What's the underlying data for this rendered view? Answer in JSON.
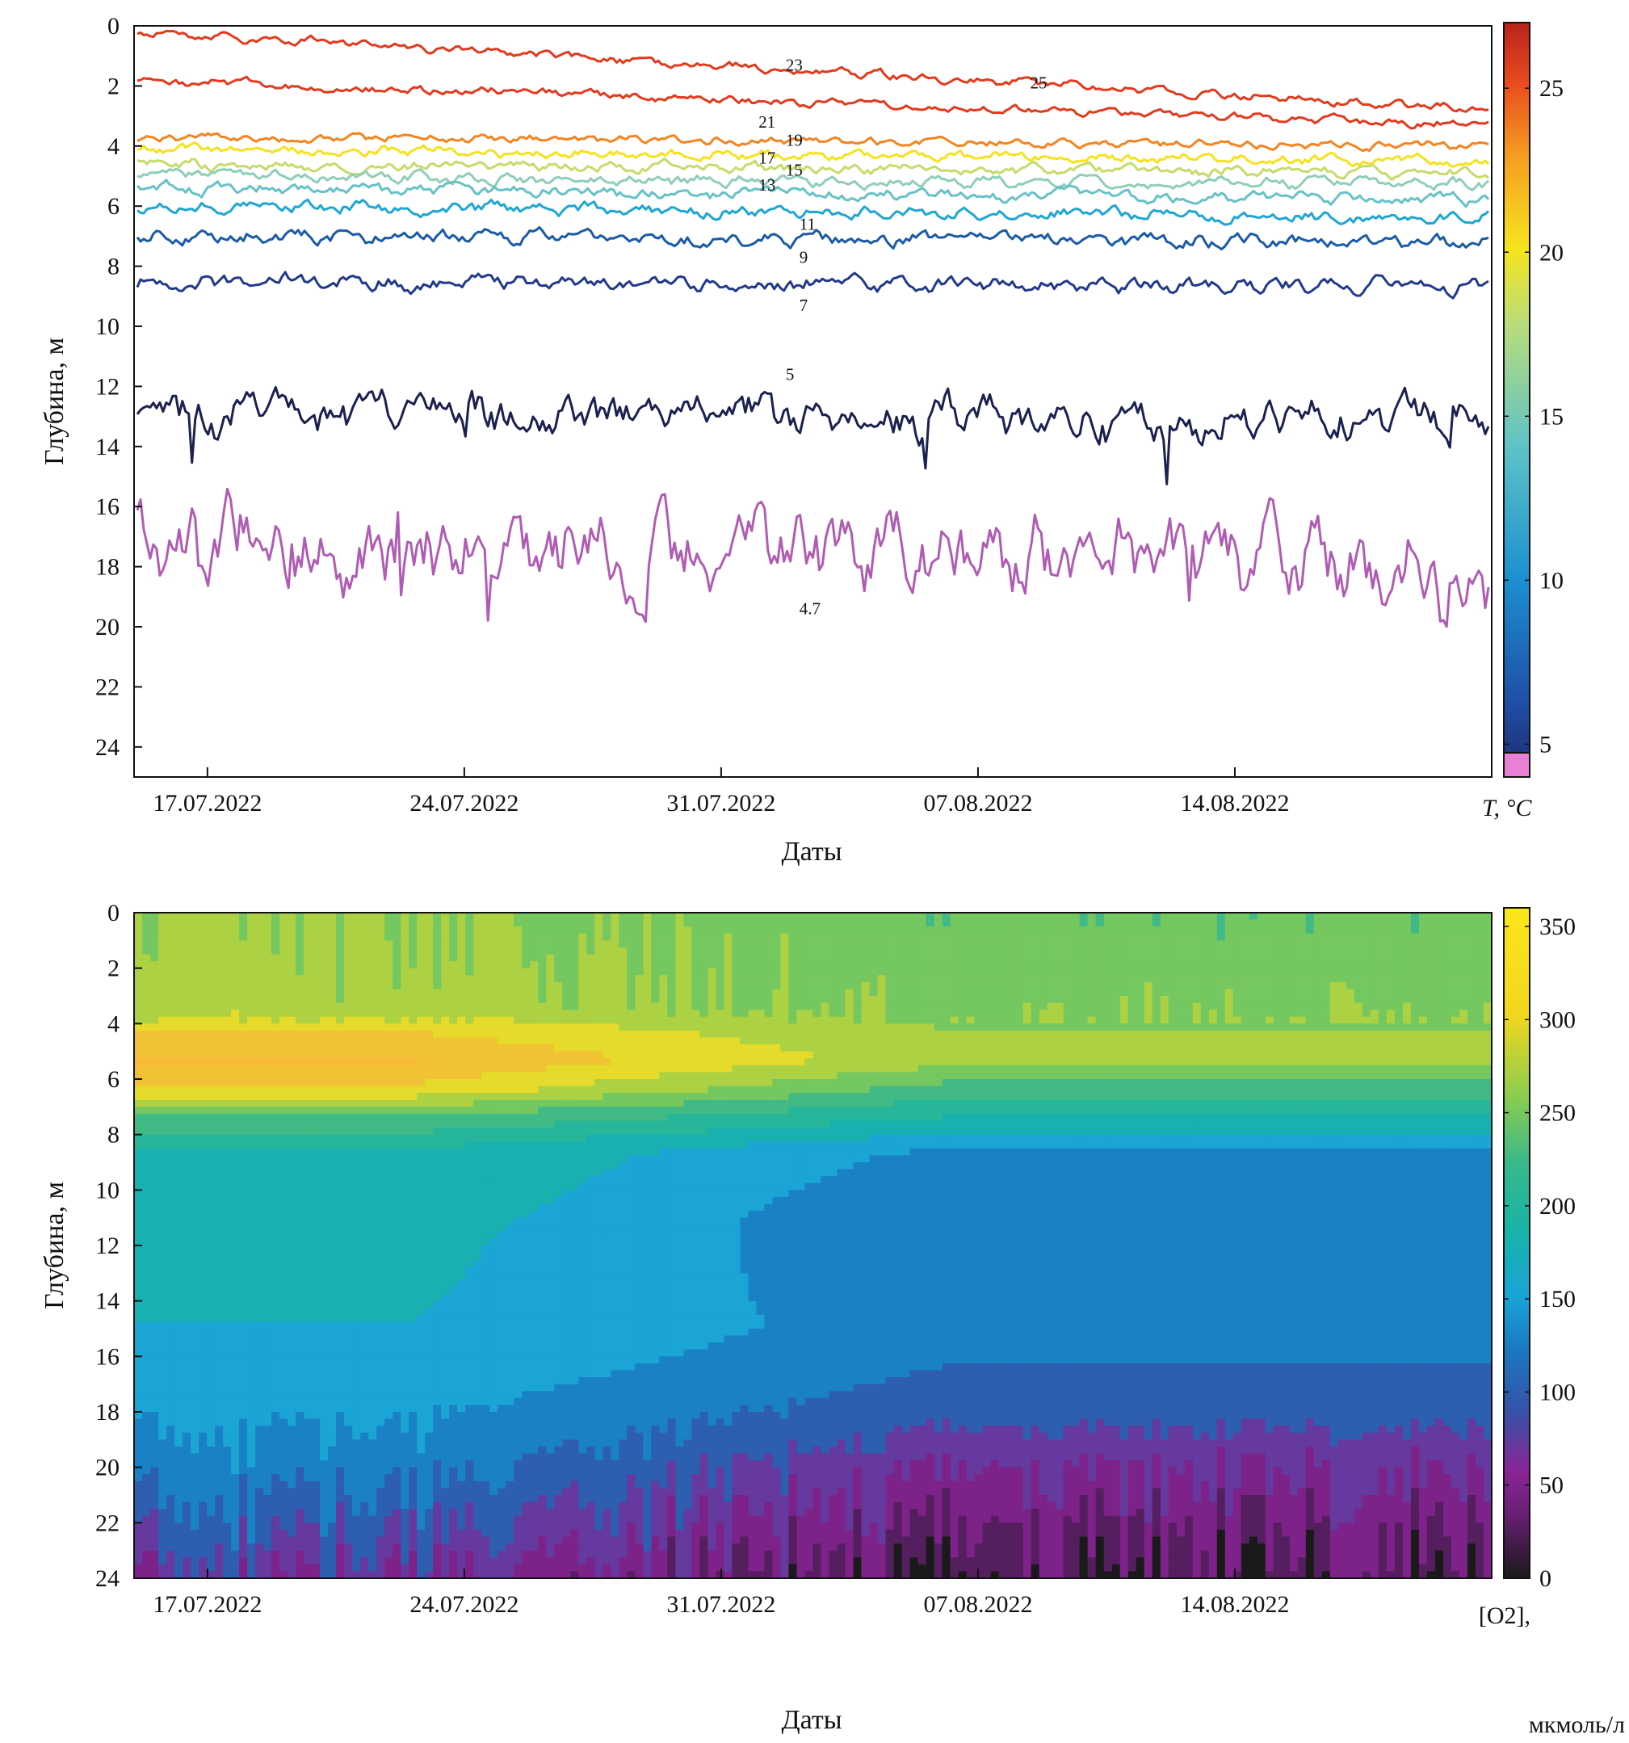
{
  "chart_data": [
    {
      "type": "line",
      "xlabel": "Даты",
      "ylabel": "Глубина, м",
      "colorbar_label": "T, °C",
      "x_ticks": [
        "17.07.2022",
        "24.07.2022",
        "31.07.2022",
        "07.08.2022",
        "14.08.2022"
      ],
      "x_range": [
        "15.07.2022",
        "21.08.2022"
      ],
      "ylim": [
        25,
        0
      ],
      "y_ticks": [
        0,
        2,
        4,
        6,
        8,
        10,
        12,
        14,
        16,
        18,
        20,
        22,
        24
      ],
      "colorbar_range": [
        4,
        27
      ],
      "colorbar_ticks": [
        5,
        10,
        15,
        20,
        25
      ],
      "series": [
        {
          "name": "25",
          "color": "#e23a1e",
          "depth_start": 0.2,
          "depth_end": 2.8,
          "amplitude": 0.12
        },
        {
          "name": "23",
          "color": "#e23a1e",
          "depth_start": 1.8,
          "depth_end": 3.3,
          "amplitude": 0.12
        },
        {
          "name": "21",
          "color": "#f5841f",
          "depth_start": 3.7,
          "depth_end": 4.0,
          "amplitude": 0.12
        },
        {
          "name": "19",
          "color": "#f6e21c",
          "depth_start": 4.1,
          "depth_end": 4.5,
          "amplitude": 0.14
        },
        {
          "name": "17",
          "color": "#c5dc6a",
          "depth_start": 4.6,
          "depth_end": 4.9,
          "amplitude": 0.15
        },
        {
          "name": "15",
          "color": "#8ecfb6",
          "depth_start": 5.0,
          "depth_end": 5.3,
          "amplitude": 0.16
        },
        {
          "name": "13",
          "color": "#67c2c8",
          "depth_start": 5.4,
          "depth_end": 5.8,
          "amplitude": 0.17
        },
        {
          "name": "11",
          "color": "#1ea6d4",
          "depth_start": 6.0,
          "depth_end": 6.4,
          "amplitude": 0.18
        },
        {
          "name": "9",
          "color": "#1a5ba8",
          "depth_start": 7.0,
          "depth_end": 7.2,
          "amplitude": 0.2
        },
        {
          "name": "7",
          "color": "#223a8c",
          "depth_start": 8.5,
          "depth_end": 8.7,
          "amplitude": 0.22
        },
        {
          "name": "5",
          "color": "#1b2150",
          "depth_start": 13.0,
          "depth_end": 13.2,
          "amplitude": 0.6
        },
        {
          "name": "4.7",
          "color": "#b05cb4",
          "depth_start": 17.2,
          "depth_end": 18.0,
          "amplitude": 1.1
        }
      ]
    },
    {
      "type": "heatmap",
      "xlabel": "Даты",
      "ylabel": "Глубина, м",
      "colorbar_label_line1": "[O2],",
      "colorbar_label_line2": "мкмоль/л",
      "x_ticks": [
        "17.07.2022",
        "24.07.2022",
        "31.07.2022",
        "07.08.2022",
        "14.08.2022"
      ],
      "x_range": [
        "15.07.2022",
        "21.08.2022"
      ],
      "ylim": [
        24,
        0
      ],
      "y_ticks": [
        0,
        2,
        4,
        6,
        8,
        10,
        12,
        14,
        16,
        18,
        20,
        22,
        24
      ],
      "colorbar_range": [
        0,
        360
      ],
      "colorbar_ticks": [
        0,
        50,
        100,
        150,
        200,
        250,
        300,
        350
      ],
      "profile_early": [
        {
          "depth": 0,
          "o2": 235
        },
        {
          "depth": 3.5,
          "o2": 240
        },
        {
          "depth": 4.3,
          "o2": 275
        },
        {
          "depth": 5.3,
          "o2": 300
        },
        {
          "depth": 6.4,
          "o2": 270
        },
        {
          "depth": 7.2,
          "o2": 215
        },
        {
          "depth": 8.5,
          "o2": 165
        },
        {
          "depth": 12,
          "o2": 150
        },
        {
          "depth": 16,
          "o2": 140
        },
        {
          "depth": 20,
          "o2": 110
        },
        {
          "depth": 23,
          "o2": 75
        },
        {
          "depth": 24,
          "o2": 60
        }
      ],
      "profile_late": [
        {
          "depth": 0,
          "o2": 215
        },
        {
          "depth": 3.5,
          "o2": 225
        },
        {
          "depth": 5.3,
          "o2": 240
        },
        {
          "depth": 6.2,
          "o2": 205
        },
        {
          "depth": 7.5,
          "o2": 160
        },
        {
          "depth": 8.7,
          "o2": 115
        },
        {
          "depth": 11,
          "o2": 100
        },
        {
          "depth": 15,
          "o2": 110
        },
        {
          "depth": 18,
          "o2": 85
        },
        {
          "depth": 20,
          "o2": 55
        },
        {
          "depth": 22,
          "o2": 35
        },
        {
          "depth": 24,
          "o2": 15
        }
      ]
    }
  ]
}
